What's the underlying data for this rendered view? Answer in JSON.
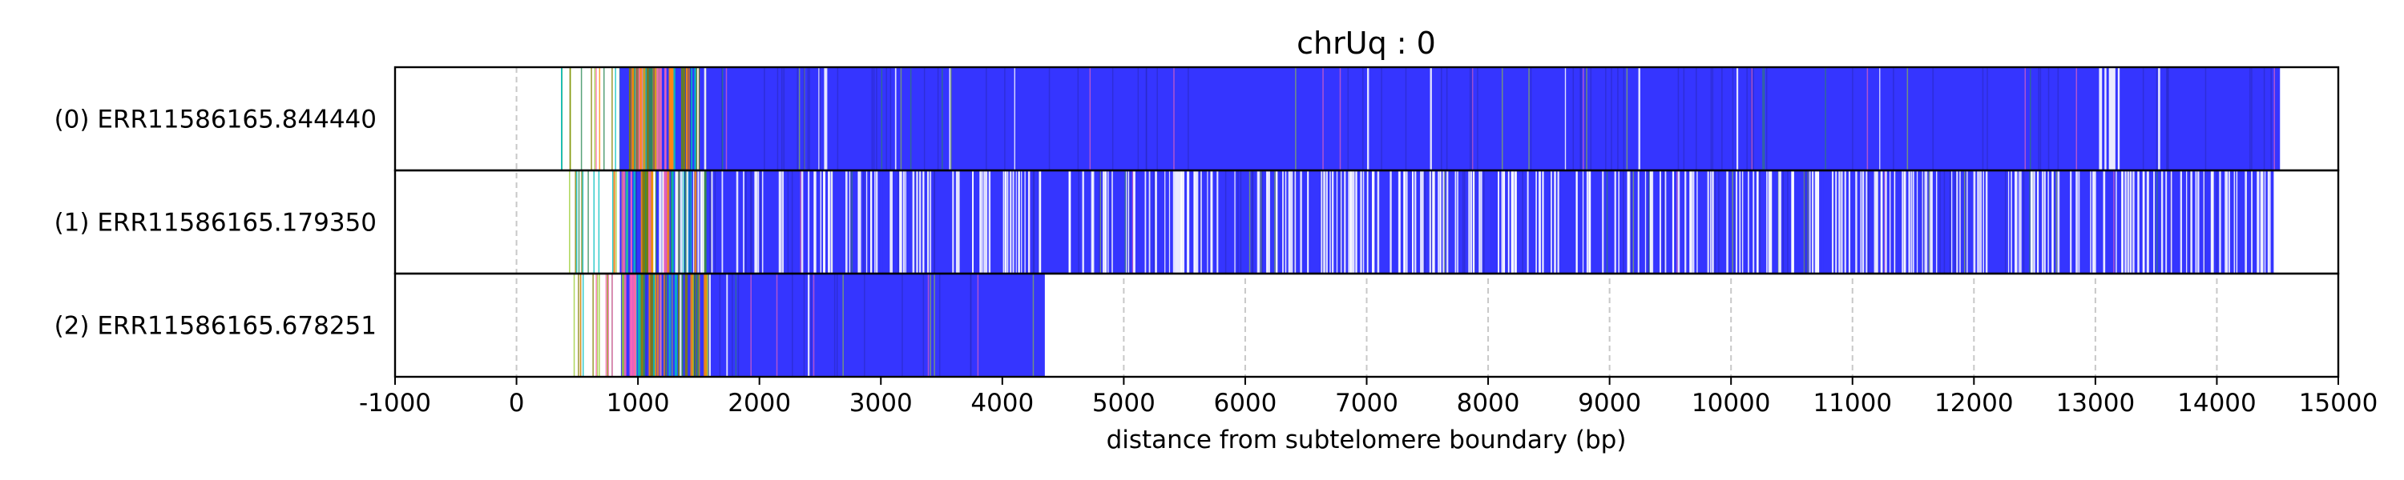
{
  "chart_data": {
    "type": "bar",
    "title": "chrUq : 0",
    "xlabel": "distance from subtelomere boundary (bp)",
    "ylabel": "",
    "xlim": [
      -1000,
      15000
    ],
    "xticks": [
      -1000,
      0,
      1000,
      2000,
      3000,
      4000,
      5000,
      6000,
      7000,
      8000,
      9000,
      10000,
      11000,
      12000,
      13000,
      14000,
      15000
    ],
    "xtick_labels": [
      "-1000",
      "0",
      "1000",
      "2000",
      "3000",
      "4000",
      "5000",
      "6000",
      "7000",
      "8000",
      "9000",
      "10000",
      "11000",
      "12000",
      "13000",
      "14000",
      "15000"
    ],
    "grid": "vertical dashed",
    "colors": {
      "main": "#3535ff",
      "accents": [
        "#2e8b57",
        "#9acd32",
        "#ff69b4",
        "#ff8c00",
        "#00bfbf",
        "#808000"
      ]
    },
    "reads": [
      {
        "label": "(0) ERR11586165.844440",
        "start": 330,
        "dense_start": 850,
        "end": 14520,
        "white_gaps": [
          [
            13030,
            13200
          ]
        ]
      },
      {
        "label": "(1) ERR11586165.179350",
        "start": 350,
        "dense_start": 850,
        "end": 14470,
        "white_gaps": [
          [
            2960,
            3010
          ],
          [
            5420,
            5600
          ],
          [
            10700,
            10760
          ]
        ]
      },
      {
        "label": "(2) ERR11586165.678251",
        "start": 420,
        "dense_start": 860,
        "end": 4350,
        "white_gaps": []
      }
    ]
  }
}
